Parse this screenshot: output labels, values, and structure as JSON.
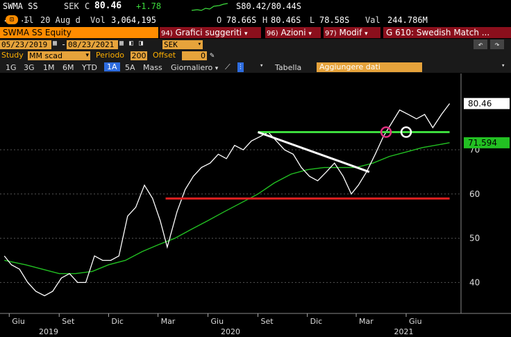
{
  "quote": {
    "ticker": "SWMA SS",
    "currency": "SEK",
    "close_flag": "C",
    "last": "80.46",
    "change": "+1.78",
    "time_prefix": "Il",
    "date": "20 Aug d",
    "vol_label": "Vol",
    "volume": "3,064,195",
    "open_flag": "O",
    "open": "78.66S",
    "high_flag": "H",
    "high": "80.46S",
    "low_flag": "L",
    "low": "78.58S",
    "bid_ask": "S80.42/80.44S",
    "val_label": "Val",
    "value": "244.786M"
  },
  "toolbar": {
    "security": "SWMA SS Equity",
    "menu1_num": "94)",
    "menu1": "Grafici suggeriti",
    "menu2_num": "96)",
    "menu2": "Azioni",
    "menu3_num": "97)",
    "menu3": "Modif",
    "page_title": "G 610: Swedish Match ..."
  },
  "range": {
    "start": "05/23/2019",
    "end": "08/23/2021",
    "currency": "SEK"
  },
  "study": {
    "label": "Study",
    "value": "MM scad",
    "period_label": "Periodo",
    "period": "200",
    "offset_label": "Offset",
    "offset": "0"
  },
  "periods": {
    "items": [
      "1G",
      "3G",
      "1M",
      "6M",
      "YTD",
      "1A",
      "5A",
      "Mass",
      "Giornaliero"
    ],
    "selected": "1A",
    "table_label": "Tabella",
    "add_data_placeholder": "Aggiungere dati"
  },
  "chart_data": {
    "type": "line",
    "y_ticks": [
      40,
      50,
      60,
      70
    ],
    "ylim": [
      33,
      86
    ],
    "x_tick_labels": [
      "Giu",
      "Set",
      "Dic",
      "Mar",
      "Giu",
      "Set",
      "Dic",
      "Mar",
      "Giu"
    ],
    "years": [
      "2019",
      "2020",
      "2021"
    ],
    "price_label": "80.46",
    "ma_label": "71.594",
    "price": {
      "dates": [
        "2019-05-23",
        "2019-06-05",
        "2019-06-20",
        "2019-07-05",
        "2019-07-20",
        "2019-08-05",
        "2019-08-20",
        "2019-09-05",
        "2019-09-20",
        "2019-10-05",
        "2019-10-20",
        "2019-11-05",
        "2019-11-20",
        "2019-12-05",
        "2019-12-20",
        "2020-01-05",
        "2020-01-20",
        "2020-02-05",
        "2020-02-20",
        "2020-03-05",
        "2020-03-18",
        "2020-04-05",
        "2020-04-20",
        "2020-05-05",
        "2020-05-20",
        "2020-06-05",
        "2020-06-20",
        "2020-07-05",
        "2020-07-20",
        "2020-08-05",
        "2020-08-20",
        "2020-09-05",
        "2020-09-20",
        "2020-10-05",
        "2020-10-20",
        "2020-11-05",
        "2020-11-20",
        "2020-12-05",
        "2020-12-20",
        "2021-01-05",
        "2021-01-20",
        "2021-02-05",
        "2021-02-20",
        "2021-03-05",
        "2021-03-20",
        "2021-04-05",
        "2021-04-20",
        "2021-05-05",
        "2021-05-20",
        "2021-06-05",
        "2021-06-20",
        "2021-07-05",
        "2021-07-20",
        "2021-08-05",
        "2021-08-20"
      ],
      "values": [
        46,
        44,
        43,
        40,
        38,
        37,
        38,
        41,
        42,
        40,
        40,
        46,
        45,
        45,
        46,
        55,
        57,
        62,
        59,
        54,
        48,
        56,
        61,
        64,
        66,
        67,
        69,
        68,
        71,
        70,
        72,
        73,
        74,
        72,
        70,
        69,
        66,
        64,
        63,
        65,
        67,
        64,
        60,
        62,
        65,
        69,
        73,
        76,
        79,
        78,
        77,
        78,
        75,
        78,
        80.46
      ]
    },
    "ma": {
      "dates": [
        "2019-05-23",
        "2019-07-01",
        "2019-08-01",
        "2019-09-01",
        "2019-10-01",
        "2019-11-01",
        "2019-12-01",
        "2020-01-01",
        "2020-02-01",
        "2020-03-01",
        "2020-04-01",
        "2020-05-01",
        "2020-06-01",
        "2020-07-01",
        "2020-08-01",
        "2020-09-01",
        "2020-10-01",
        "2020-11-01",
        "2020-12-01",
        "2021-01-01",
        "2021-02-01",
        "2021-03-01",
        "2021-04-01",
        "2021-05-01",
        "2021-06-01",
        "2021-07-01",
        "2021-08-20"
      ],
      "values": [
        45,
        44,
        43,
        42,
        42,
        42.5,
        44,
        45,
        47,
        48.5,
        50,
        52,
        54,
        56,
        58,
        60,
        62.5,
        64.5,
        65.5,
        66,
        66,
        66,
        67,
        68.5,
        69.5,
        70.5,
        71.594
      ]
    },
    "lines": [
      {
        "name": "resistance",
        "color": "#3ddc3d",
        "x1": "2020-09-01",
        "y1": 74,
        "x2": "2021-08-20",
        "y2": 74
      },
      {
        "name": "support",
        "color": "#e02020",
        "x1": "2020-03-15",
        "y1": 59,
        "x2": "2021-08-20",
        "y2": 59
      },
      {
        "name": "trendline",
        "color": "#ffffff",
        "x1": "2020-09-01",
        "y1": 74,
        "x2": "2021-03-25",
        "y2": 65
      }
    ],
    "markers": [
      {
        "color": "#e03080",
        "date": "2021-04-25",
        "value": 74
      },
      {
        "color": "#ffffff",
        "date": "2021-06-01",
        "value": 74
      }
    ]
  }
}
